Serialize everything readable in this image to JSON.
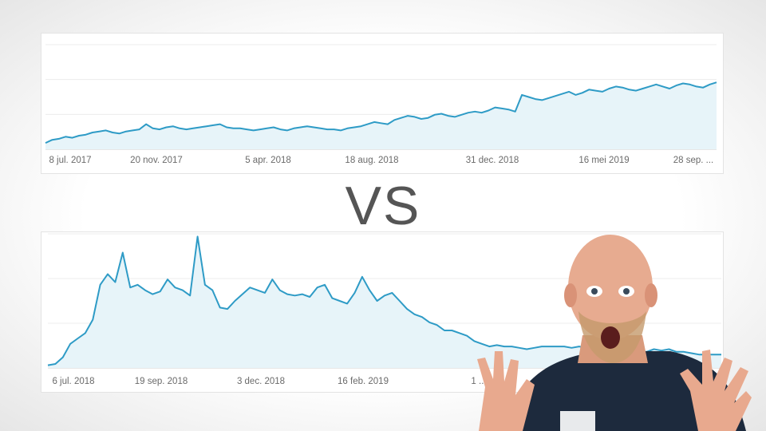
{
  "center_text": "VS",
  "chart_data": [
    {
      "type": "area",
      "x_tick_labels": [
        "8 jul. 2017",
        "20 nov. 2017",
        "5 apr. 2018",
        "18 aug. 2018",
        "31 dec. 2018",
        "16 mei 2019",
        "28 sep. ..."
      ],
      "series": [
        {
          "color": "#2e9bc6",
          "values": [
            6,
            9,
            10,
            12,
            11,
            13,
            14,
            16,
            17,
            18,
            16,
            15,
            17,
            18,
            19,
            24,
            20,
            19,
            21,
            22,
            20,
            19,
            20,
            21,
            22,
            23,
            24,
            21,
            20,
            20,
            19,
            18,
            19,
            20,
            21,
            19,
            18,
            20,
            21,
            22,
            21,
            20,
            19,
            19,
            18,
            20,
            21,
            22,
            24,
            26,
            25,
            24,
            28,
            30,
            32,
            31,
            29,
            30,
            33,
            34,
            32,
            31,
            33,
            35,
            36,
            35,
            37,
            40,
            39,
            38,
            36,
            52,
            50,
            48,
            47,
            49,
            51,
            53,
            55,
            52,
            54,
            57,
            56,
            55,
            58,
            60,
            59,
            57,
            56,
            58,
            60,
            62,
            60,
            58,
            61,
            63,
            62,
            60,
            59,
            62,
            64
          ]
        }
      ],
      "grid": true
    },
    {
      "type": "area",
      "x_tick_labels": [
        "6 jul. 2018",
        "19 sep. 2018",
        "3 dec. 2018",
        "16 feb. 2019",
        "1 ..."
      ],
      "series": [
        {
          "color": "#2e9bc6",
          "values": [
            2,
            3,
            8,
            18,
            22,
            26,
            36,
            62,
            70,
            64,
            86,
            60,
            62,
            58,
            55,
            57,
            66,
            60,
            58,
            54,
            98,
            62,
            58,
            45,
            44,
            50,
            55,
            60,
            58,
            56,
            66,
            58,
            55,
            54,
            55,
            53,
            60,
            62,
            52,
            50,
            48,
            56,
            68,
            58,
            50,
            54,
            56,
            50,
            44,
            40,
            38,
            34,
            32,
            28,
            28,
            26,
            24,
            20,
            18,
            16,
            17,
            16,
            16,
            15,
            14,
            15,
            16,
            16,
            16,
            16,
            15,
            16,
            15,
            15,
            16,
            15,
            16,
            14,
            15,
            13,
            12,
            14,
            13,
            14,
            12,
            12,
            11,
            10,
            10,
            10,
            10
          ]
        }
      ],
      "grid": true
    }
  ]
}
